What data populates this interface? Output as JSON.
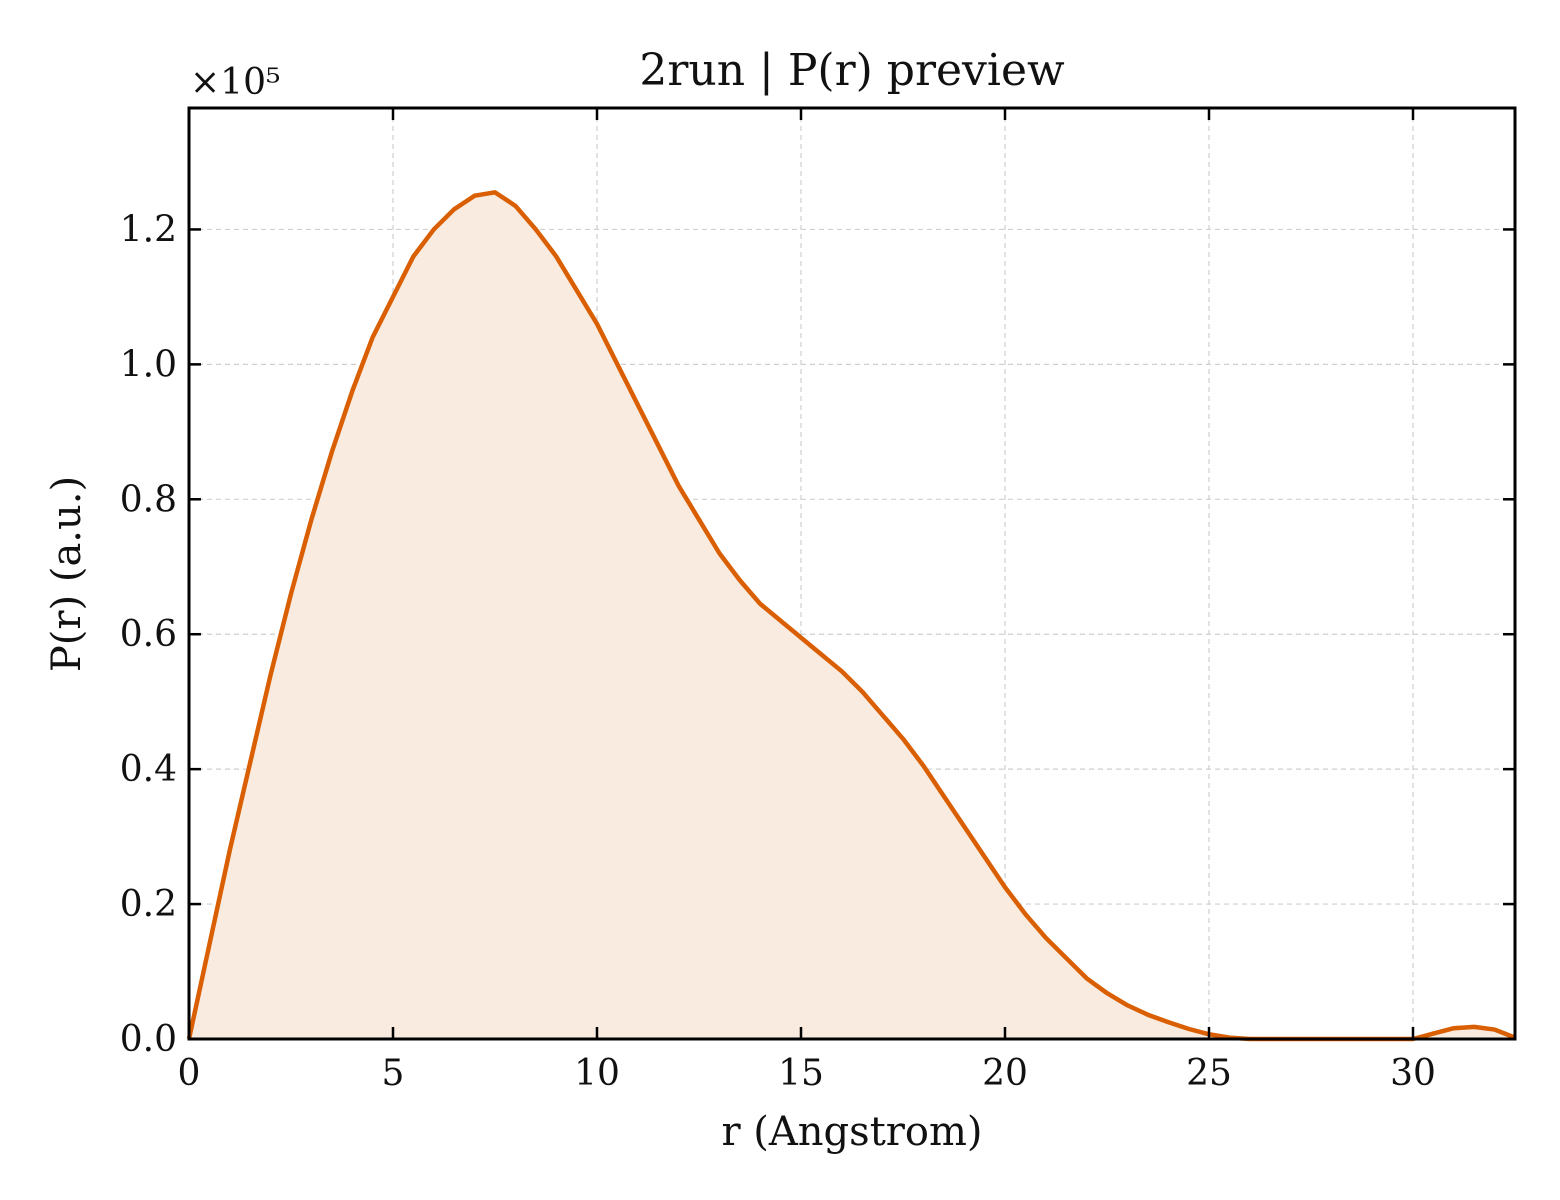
{
  "chart_data": {
    "type": "area",
    "title": "2run | P(r) preview",
    "xlabel": "r (Angstrom)",
    "ylabel": "P(r) (a.u.)",
    "y_offset_label": "×10⁵",
    "xlim": [
      0,
      32.5
    ],
    "ylim": [
      0,
      1.38
    ],
    "y_scale_factor": 100000,
    "xticks": [
      0,
      5,
      10,
      15,
      20,
      25,
      30
    ],
    "xtick_labels": [
      "0",
      "5",
      "10",
      "15",
      "20",
      "25",
      "30"
    ],
    "yticks": [
      0.0,
      0.2,
      0.4,
      0.6,
      0.8,
      1.0,
      1.2
    ],
    "ytick_labels": [
      "0.0",
      "0.2",
      "0.4",
      "0.6",
      "0.8",
      "1.0",
      "1.2"
    ],
    "grid": true,
    "colors": {
      "line": "#d95f02",
      "fill": "#f9ebe0"
    },
    "series": [
      {
        "x": [
          0,
          0.5,
          1,
          1.5,
          2,
          2.5,
          3,
          3.5,
          4,
          4.5,
          5,
          5.5,
          6,
          6.5,
          7,
          7.5,
          8,
          8.5,
          9,
          9.5,
          10,
          10.5,
          11,
          11.5,
          12,
          12.5,
          13,
          13.5,
          14,
          14.5,
          15,
          15.5,
          16,
          16.5,
          17,
          17.5,
          18,
          18.5,
          19,
          19.5,
          20,
          20.5,
          21,
          21.5,
          22,
          22.5,
          23,
          23.5,
          24,
          24.5,
          25,
          25.5,
          26,
          27,
          28,
          29,
          30,
          30.5,
          31,
          31.5,
          32,
          32.5
        ],
        "y": [
          0.0,
          0.14,
          0.28,
          0.41,
          0.54,
          0.66,
          0.77,
          0.87,
          0.96,
          1.04,
          1.1,
          1.16,
          1.2,
          1.23,
          1.25,
          1.255,
          1.235,
          1.2,
          1.16,
          1.11,
          1.06,
          1.0,
          0.94,
          0.88,
          0.82,
          0.77,
          0.72,
          0.68,
          0.645,
          0.62,
          0.595,
          0.57,
          0.545,
          0.515,
          0.48,
          0.445,
          0.405,
          0.36,
          0.315,
          0.27,
          0.225,
          0.185,
          0.15,
          0.12,
          0.09,
          0.068,
          0.05,
          0.036,
          0.025,
          0.015,
          0.007,
          0.002,
          0.0,
          0.0,
          0.0,
          0.0,
          0.0,
          0.008,
          0.016,
          0.018,
          0.014,
          0.002
        ]
      }
    ]
  }
}
